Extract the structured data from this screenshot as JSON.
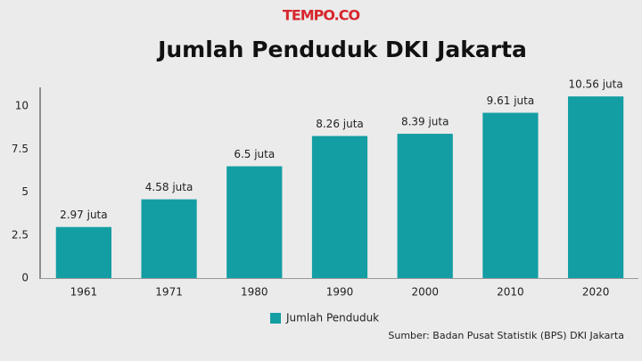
{
  "chart_data": {
    "type": "bar",
    "logo": "TEMPO.CO",
    "title": "Jumlah Penduduk DKI Jakarta",
    "categories": [
      "1961",
      "1971",
      "1980",
      "1990",
      "2000",
      "2010",
      "2020"
    ],
    "series": [
      {
        "name": "Jumlah Penduduk",
        "color": "#139ea3",
        "values": [
          2.97,
          4.58,
          6.5,
          8.26,
          8.39,
          9.61,
          10.56
        ],
        "value_labels": [
          "2.97 juta",
          "4.58 juta",
          "6.5 juta",
          "8.26 juta",
          "8.39 juta",
          "9.61 juta",
          "10.56 juta"
        ]
      }
    ],
    "ylim": [
      0,
      11
    ],
    "yticks": [
      0,
      2.5,
      5,
      7.5,
      10
    ],
    "grid": false,
    "source": "Sumber: Badan Pusat Statistik (BPS) DKI Jakarta"
  }
}
